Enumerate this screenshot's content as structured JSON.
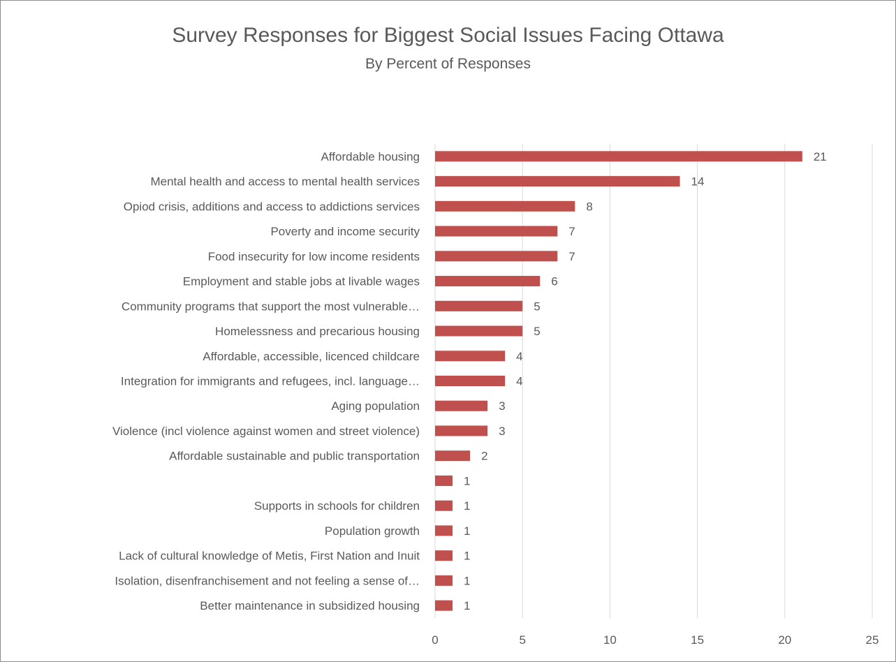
{
  "chart_data": {
    "type": "bar",
    "orientation": "horizontal",
    "title": "Survey Responses for Biggest Social Issues Facing Ottawa",
    "subtitle": "By Percent of Responses",
    "categories": [
      "Affordable housing",
      "Mental health and access to mental health services",
      "Opiod crisis, additions and access to addictions services",
      "Poverty and income security",
      "Food insecurity for low income residents",
      "Employment and stable jobs at livable wages",
      "Community programs that support the most vulnerable…",
      "Homelessness and precarious housing",
      "Affordable, accessible, licenced childcare",
      "Integration for immigrants and refugees, incl. language…",
      "Aging population",
      "Violence (incl violence against women and street violence)",
      "Affordable sustainable and public transportation",
      "",
      "Supports in schools for children",
      "Population growth",
      "Lack of cultural knowledge of Metis, First Nation and Inuit",
      "Isolation, disenfranchisement and not feeling a sense of…",
      "Better maintenance in subsidized housing"
    ],
    "values": [
      21,
      14,
      8,
      7,
      7,
      6,
      5,
      5,
      4,
      4,
      3,
      3,
      2,
      1,
      1,
      1,
      1,
      1,
      1
    ],
    "xlim": [
      0,
      25
    ],
    "xticks": [
      0,
      5,
      10,
      15,
      20,
      25
    ],
    "grid": true,
    "legend": "none",
    "bar_color": "#c0504d",
    "grid_color": "#d9d9d9",
    "text_color": "#595959"
  }
}
